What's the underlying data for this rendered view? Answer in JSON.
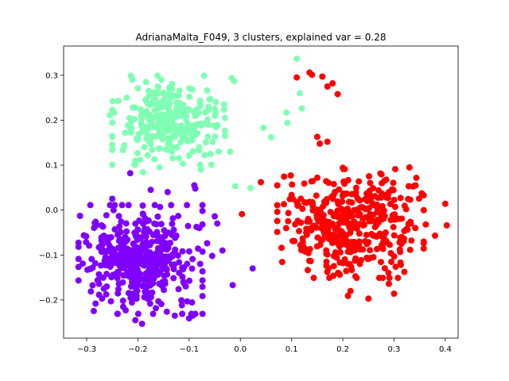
{
  "chart_data": {
    "type": "scatter",
    "title": "AdrianaMalta_F049, 3 clusters, explained var = 0.28",
    "xlabel": "",
    "ylabel": "",
    "xlim": [
      -0.345,
      0.425
    ],
    "ylim": [
      -0.285,
      0.365
    ],
    "xticks": [
      -0.3,
      -0.2,
      -0.1,
      0.0,
      0.1,
      0.2,
      0.3,
      0.4
    ],
    "xtick_labels": [
      "−0.3",
      "−0.2",
      "−0.1",
      "0.0",
      "0.1",
      "0.2",
      "0.3",
      "0.4"
    ],
    "yticks": [
      -0.2,
      -0.1,
      0.0,
      0.1,
      0.2,
      0.3
    ],
    "ytick_labels": [
      "−0.2",
      "−0.1",
      "0.0",
      "0.1",
      "0.2",
      "0.3"
    ],
    "grid": false,
    "legend": "none",
    "series": [
      {
        "color": "#8000ff",
        "n": 430,
        "center": [
          -0.195,
          -0.11
        ],
        "spread": [
          0.055,
          0.055
        ],
        "x": [
          -0.313,
          -0.293,
          -0.276,
          -0.27,
          -0.268,
          -0.26,
          -0.25,
          -0.245,
          -0.232,
          -0.215,
          -0.205,
          -0.198,
          -0.192,
          -0.185,
          -0.175,
          -0.165,
          -0.16,
          -0.142,
          -0.128,
          -0.112,
          -0.1,
          -0.093,
          -0.09,
          -0.088,
          -0.08,
          -0.065,
          -0.055,
          -0.05,
          -0.045,
          -0.035,
          -0.015,
          0.024
        ],
        "y": [
          -0.013,
          -0.131,
          -0.143,
          -0.197,
          -0.037,
          -0.061,
          0.025,
          -0.043,
          -0.126,
          0.082,
          -0.245,
          -0.099,
          -0.253,
          -0.087,
          0.045,
          -0.116,
          -0.203,
          0.04,
          -0.235,
          -0.132,
          -0.241,
          -0.235,
          0.055,
          0.048,
          -0.04,
          -0.074,
          -0.102,
          -0.014,
          -0.03,
          -0.09,
          -0.167,
          -0.13
        ]
      },
      {
        "color": "#80ffb4",
        "n": 290,
        "center": [
          -0.14,
          0.2
        ],
        "spread": [
          0.05,
          0.045
        ],
        "x": [
          -0.255,
          -0.249,
          -0.238,
          -0.225,
          -0.2,
          -0.19,
          -0.178,
          -0.158,
          -0.154,
          -0.112,
          -0.1,
          -0.077,
          -0.065,
          -0.05,
          -0.017,
          -0.012,
          -0.02,
          -0.01,
          0.02,
          0.045,
          0.06,
          0.09,
          0.092,
          0.11,
          0.116,
          0.12
        ],
        "y": [
          0.211,
          0.242,
          0.243,
          0.172,
          0.271,
          0.084,
          0.255,
          0.095,
          0.29,
          0.103,
          0.121,
          0.09,
          0.266,
          0.21,
          0.294,
          0.287,
          0.13,
          0.053,
          0.049,
          0.183,
          0.162,
          0.217,
          0.194,
          0.337,
          0.26,
          0.226
        ]
      },
      {
        "color": "#ff0000",
        "n": 420,
        "center": [
          0.215,
          -0.03
        ],
        "spread": [
          0.065,
          0.055
        ],
        "x": [
          0.003,
          0.04,
          0.085,
          0.11,
          0.12,
          0.135,
          0.14,
          0.15,
          0.155,
          0.16,
          0.17,
          0.18,
          0.19,
          0.2,
          0.21,
          0.215,
          0.25,
          0.29,
          0.3,
          0.33,
          0.342,
          0.362,
          0.38,
          0.4,
          0.403,
          0.17
        ],
        "y": [
          -0.009,
          0.062,
          0.013,
          0.295,
          -0.084,
          0.306,
          0.301,
          0.163,
          0.148,
          0.297,
          0.275,
          0.282,
          0.258,
          0.094,
          -0.191,
          -0.18,
          -0.197,
          -0.164,
          -0.186,
          0.095,
          0.055,
          -0.032,
          -0.057,
          0.014,
          -0.034,
          0.152
        ]
      }
    ]
  }
}
